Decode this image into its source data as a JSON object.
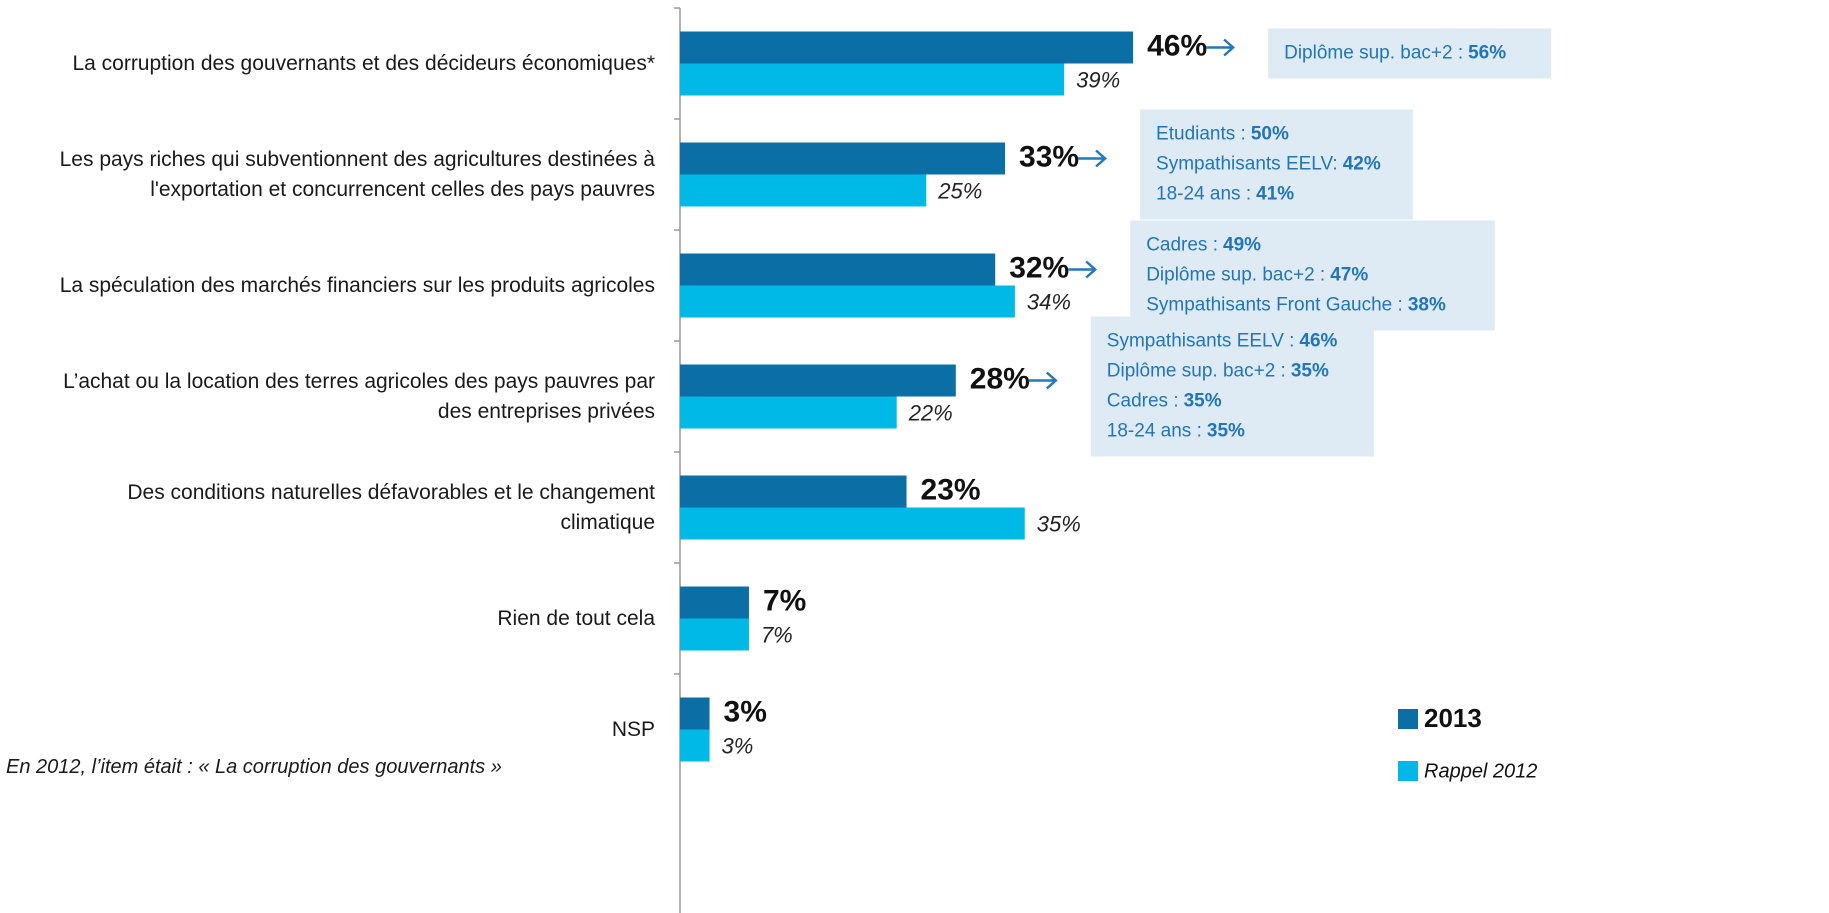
{
  "chart_data": {
    "type": "hbar",
    "categories": [
      "La corruption des gouvernants et des décideurs économiques*",
      "Les pays riches qui subventionnent des agricultures destinées à\nl'exportation et concurrencent  celles des pays pauvres",
      "La spéculation des marchés financiers sur les produits agricoles",
      "L’achat ou la location des terres agricoles des pays pauvres par\ndes entreprises privées",
      "Des conditions naturelles défavorables et le changement\nclimatique",
      "Rien de tout cela",
      "NSP"
    ],
    "series": [
      {
        "name": "2013",
        "color": "#0b6fa6",
        "values": [
          46,
          33,
          32,
          28,
          23,
          7,
          3
        ],
        "value_labels": [
          "46%",
          "33%",
          "32%",
          "28%",
          "23%",
          "7%",
          "3%"
        ]
      },
      {
        "name": "Rappel 2012",
        "color": "#00b9e7",
        "values": [
          39,
          25,
          34,
          22,
          35,
          7,
          3
        ],
        "value_labels": [
          "39%",
          "25%",
          "34%",
          "22%",
          "35%",
          "7%",
          "3%"
        ]
      }
    ],
    "xlim": [
      0,
      100
    ],
    "callouts": [
      [
        {
          "label": "Diplôme sup. bac+2 :",
          "value": "56%"
        }
      ],
      [
        {
          "label": "Etudiants :",
          "value": "50%"
        },
        {
          "label": "Sympathisants EELV:",
          "value": "42%"
        },
        {
          "label": "18-24 ans :",
          "value": "41%"
        }
      ],
      [
        {
          "label": "Cadres :",
          "value": "49%"
        },
        {
          "label": "Diplôme sup. bac+2 :",
          "value": "47%"
        },
        {
          "label": "Sympathisants Front Gauche :",
          "value": "38%"
        }
      ],
      [
        {
          "label": "Sympathisants EELV :",
          "value": "46%"
        },
        {
          "label": "Diplôme sup. bac+2 :",
          "value": "35%"
        },
        {
          "label": "Cadres :",
          "value": "35%"
        },
        {
          "label": "18-24 ans :",
          "value": "35%"
        }
      ],
      null,
      null,
      null
    ],
    "footnote": "En 2012, l’item était : « La corruption des gouvernants »"
  }
}
